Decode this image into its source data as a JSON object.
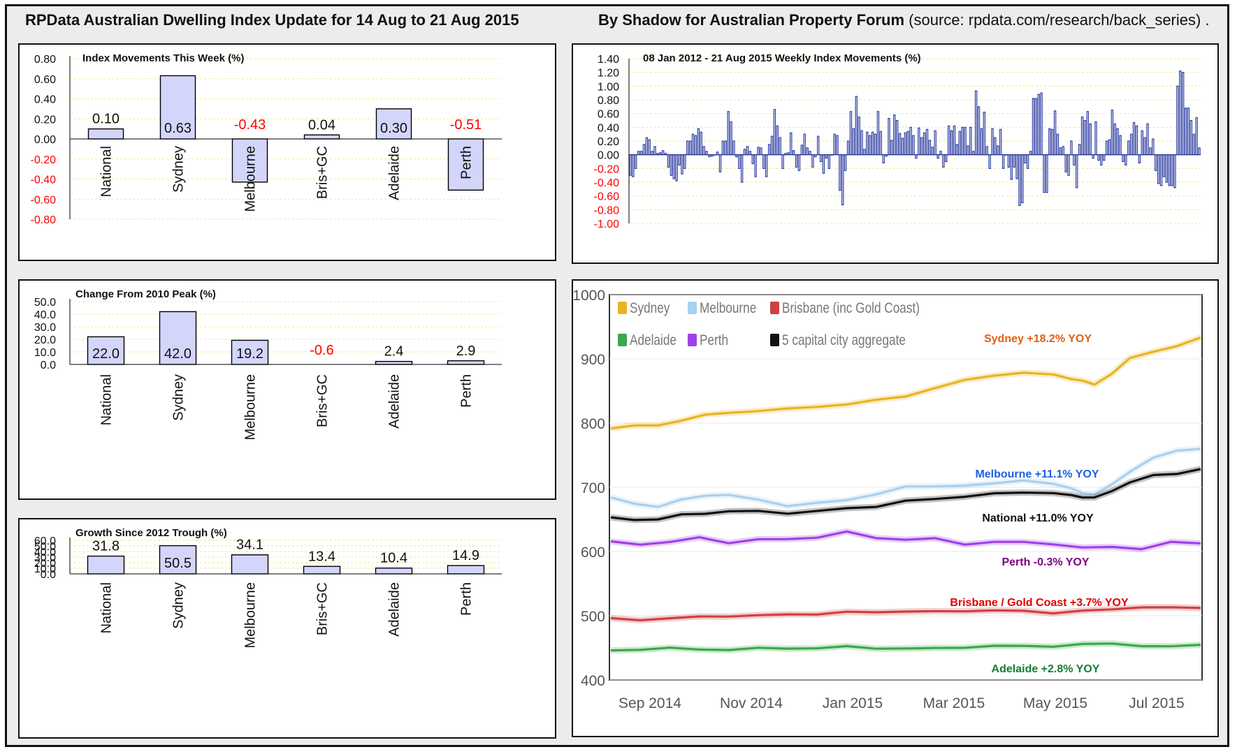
{
  "header": {
    "left_title": "RPData Australian Dwelling Index Update for 14 Aug to 21 Aug 2015",
    "right_title": "By Shadow for Australian Property Forum",
    "source": "(source: rpdata.com/research/back_series)",
    "trailing_dot": "."
  },
  "chart_data": [
    {
      "id": "index-movements",
      "type": "bar",
      "title": "Index Movements This Week (%)",
      "categories": [
        "National",
        "Sydney",
        "Melbourne",
        "Bris+GC",
        "Adelaide",
        "Perth"
      ],
      "values": [
        0.1,
        0.63,
        -0.43,
        0.04,
        0.3,
        -0.51
      ],
      "labels": [
        "0.10",
        "0.63",
        "-0.43",
        "0.04",
        "0.30",
        "-0.51"
      ],
      "ylim": [
        -0.8,
        0.8
      ],
      "yticks": [
        "0.80",
        "0.60",
        "0.40",
        "0.20",
        "0.00",
        "-0.20",
        "-0.40",
        "-0.60",
        "-0.80"
      ],
      "grid": true,
      "colors": {
        "bar": "#d3d5fb",
        "negative": "#ff0000"
      }
    },
    {
      "id": "weekly-movements",
      "type": "bar",
      "title": "08 Jan 2012 - 21 Aug 2015 Weekly Index Movements (%)",
      "values": [
        -0.3,
        -0.32,
        -0.2,
        0.05,
        0.05,
        0.15,
        0.25,
        0.22,
        0.05,
        0.12,
        0.02,
        0.03,
        0.06,
        0.02,
        -0.18,
        -0.3,
        -0.35,
        -0.38,
        -0.15,
        -0.28,
        -0.2,
        0.2,
        0.2,
        0.3,
        0.28,
        0.38,
        0.33,
        0.12,
        0.05,
        -0.03,
        -0.02,
        0.0,
        0.04,
        -0.25,
        0.2,
        0.2,
        0.63,
        0.48,
        0.2,
        -0.03,
        -0.2,
        -0.4,
        0.08,
        0.12,
        0.05,
        -0.13,
        -0.32,
        0.11,
        0.1,
        -0.2,
        -0.32,
        0.15,
        0.27,
        0.66,
        0.42,
        0.25,
        -0.2,
        0.02,
        0.03,
        0.32,
        0.06,
        -0.18,
        -0.23,
        0.14,
        0.3,
        0.1,
        0.05,
        -0.18,
        -0.03,
        0.27,
        -0.1,
        -0.27,
        -0.05,
        -0.2,
        0.0,
        0.3,
        0.28,
        -0.52,
        -0.73,
        -0.23,
        0.2,
        0.63,
        0.38,
        0.85,
        0.55,
        0.35,
        0.08,
        0.33,
        0.28,
        0.33,
        0.3,
        0.63,
        0.34,
        -0.12,
        -0.02,
        0.53,
        0.21,
        0.58,
        0.5,
        0.31,
        0.24,
        0.32,
        0.34,
        0.4,
        0.28,
        -0.05,
        0.39,
        0.25,
        0.32,
        0.37,
        0.21,
        0.11,
        0.35,
        -0.05,
        0.05,
        -0.18,
        -0.1,
        0.42,
        0.35,
        0.42,
        0.15,
        0.34,
        0.4,
        0.4,
        0.13,
        0.4,
        0.05,
        0.93,
        0.7,
        0.38,
        0.62,
        0.12,
        -0.2,
        0.38,
        0.25,
        0.13,
        0.37,
        -0.2,
        0.0,
        -0.18,
        -0.36,
        -0.18,
        -0.35,
        -0.74,
        -0.7,
        -0.12,
        -0.2,
        0.05,
        0.82,
        0.82,
        0.88,
        0.9,
        -0.55,
        -0.55,
        0.38,
        0.37,
        0.64,
        0.3,
        0.1,
        0.12,
        -0.25,
        -0.3,
        0.2,
        -0.15,
        -0.48,
        0.15,
        0.55,
        0.5,
        0.63,
        0.45,
        -0.05,
        0.48,
        -0.08,
        -0.15,
        -0.08,
        0.2,
        0.22,
        0.65,
        0.45,
        0.38,
        0.28,
        -0.1,
        -0.15,
        0.2,
        0.3,
        0.47,
        0.42,
        -0.12,
        0.35,
        0.25,
        0.45,
        0.1,
        0.23,
        -0.23,
        -0.42,
        -0.45,
        -0.32,
        -0.4,
        -0.45,
        -0.45,
        -0.48,
        1.0,
        1.22,
        1.2,
        0.68,
        0.68,
        0.5,
        0.3,
        0.54,
        0.1
      ],
      "ylim": [
        -1.0,
        1.4
      ],
      "yticks": [
        "1.40",
        "1.20",
        "1.00",
        "0.80",
        "0.60",
        "0.40",
        "0.20",
        "0.00",
        "-0.20",
        "-0.40",
        "-0.60",
        "-0.80",
        "-1.00"
      ],
      "grid": true,
      "colors": {
        "bar": "#1a2c9a",
        "negative_tick": "#ff0000"
      }
    },
    {
      "id": "change-from-peak",
      "type": "bar",
      "title": "Change From 2010 Peak (%)",
      "categories": [
        "National",
        "Sydney",
        "Melbourne",
        "Bris+GC",
        "Adelaide",
        "Perth"
      ],
      "values": [
        22.0,
        42.0,
        19.2,
        -0.6,
        2.4,
        2.9
      ],
      "labels": [
        "22.0",
        "42.0",
        "19.2",
        "-0.6",
        "2.4",
        "2.9"
      ],
      "ylim": [
        0,
        50
      ],
      "yticks": [
        "50.0",
        "40.0",
        "30.0",
        "20.0",
        "10.0",
        "0.0"
      ],
      "grid": true,
      "colors": {
        "bar": "#d3d5fb",
        "negative": "#ff0000"
      }
    },
    {
      "id": "growth-since-trough",
      "type": "bar",
      "title": "Growth Since 2012 Trough (%)",
      "categories": [
        "National",
        "Sydney",
        "Melbourne",
        "Bris+GC",
        "Adelaide",
        "Perth"
      ],
      "values": [
        31.8,
        50.5,
        34.1,
        13.4,
        10.4,
        14.9
      ],
      "labels": [
        "31.8",
        "50.5",
        "34.1",
        "13.4",
        "10.4",
        "14.9"
      ],
      "ylim": [
        0,
        60
      ],
      "yticks": [
        "60.0",
        "50.0",
        "40.0",
        "30.0",
        "20.0",
        "10.0",
        "0.0"
      ],
      "grid": true,
      "colors": {
        "bar": "#d3d5fb"
      }
    },
    {
      "id": "capital-city-index",
      "type": "line",
      "yticks": [
        "1000",
        "900",
        "800",
        "700",
        "600",
        "500",
        "400"
      ],
      "ylim": [
        400,
        1000
      ],
      "xticks": [
        "Sep 2014",
        "Nov 2014",
        "Jan 2015",
        "Mar 2015",
        "May 2015",
        "Jul 2015"
      ],
      "legend": [
        {
          "label": "Sydney",
          "color": "#e8b422"
        },
        {
          "label": "Melbourne",
          "color": "#a8d0f0"
        },
        {
          "label": "Brisbane (inc Gold Coast)",
          "color": "#d04040"
        },
        {
          "label": "Adelaide",
          "color": "#3aa84a"
        },
        {
          "label": "Perth",
          "color": "#a040e8"
        },
        {
          "label": "5 capital city aggregate",
          "color": "#111111"
        }
      ],
      "series": [
        {
          "name": "Sydney",
          "color": "#e8b422",
          "label_color": "#e06010",
          "label": "Sydney +18.2% YOY",
          "x": [
            0,
            0.04,
            0.08,
            0.12,
            0.16,
            0.2,
            0.25,
            0.3,
            0.35,
            0.4,
            0.45,
            0.5,
            0.55,
            0.6,
            0.65,
            0.7,
            0.75,
            0.78,
            0.8,
            0.82,
            0.85,
            0.88,
            0.92,
            0.96,
            1.0
          ],
          "values": [
            792,
            797,
            795,
            805,
            813,
            815,
            820,
            822,
            825,
            830,
            835,
            842,
            855,
            866,
            875,
            878,
            875,
            870,
            865,
            860,
            878,
            900,
            912,
            920,
            932
          ]
        },
        {
          "name": "Melbourne",
          "color": "#a8d0f0",
          "label_color": "#2060e0",
          "label": "Melbourne +11.1% YOY",
          "x": [
            0,
            0.04,
            0.08,
            0.12,
            0.16,
            0.2,
            0.25,
            0.3,
            0.35,
            0.4,
            0.45,
            0.5,
            0.55,
            0.6,
            0.65,
            0.7,
            0.75,
            0.78,
            0.8,
            0.82,
            0.85,
            0.88,
            0.92,
            0.96,
            1.0
          ],
          "values": [
            683,
            675,
            670,
            680,
            688,
            688,
            680,
            672,
            675,
            680,
            690,
            700,
            702,
            703,
            705,
            712,
            705,
            698,
            692,
            688,
            705,
            725,
            745,
            758,
            760
          ]
        },
        {
          "name": "National",
          "color": "#111111",
          "label_color": "#111111",
          "label": "National +11.0% YOY",
          "x": [
            0,
            0.04,
            0.08,
            0.12,
            0.16,
            0.2,
            0.25,
            0.3,
            0.35,
            0.4,
            0.45,
            0.5,
            0.55,
            0.6,
            0.65,
            0.7,
            0.75,
            0.78,
            0.8,
            0.82,
            0.85,
            0.88,
            0.92,
            0.96,
            1.0
          ],
          "values": [
            652,
            650,
            650,
            657,
            660,
            662,
            663,
            660,
            662,
            668,
            670,
            678,
            683,
            685,
            690,
            693,
            690,
            688,
            685,
            683,
            695,
            708,
            718,
            722,
            728
          ]
        },
        {
          "name": "Perth",
          "color": "#a040e8",
          "label_color": "#800080",
          "label": "Perth -0.3% YOY",
          "x": [
            0,
            0.05,
            0.1,
            0.15,
            0.2,
            0.25,
            0.3,
            0.35,
            0.4,
            0.45,
            0.5,
            0.55,
            0.6,
            0.65,
            0.7,
            0.75,
            0.8,
            0.85,
            0.9,
            0.95,
            1.0
          ],
          "values": [
            615,
            612,
            614,
            622,
            614,
            618,
            620,
            622,
            630,
            622,
            618,
            620,
            612,
            614,
            615,
            612,
            605,
            608,
            604,
            614,
            614
          ]
        },
        {
          "name": "Brisbane / Gold Coast",
          "color": "#d04040",
          "label_color": "#e00000",
          "label": "Brisbane / Gold Coast +3.7% YOY",
          "x": [
            0,
            0.05,
            0.1,
            0.15,
            0.2,
            0.25,
            0.3,
            0.35,
            0.4,
            0.45,
            0.5,
            0.55,
            0.6,
            0.65,
            0.7,
            0.75,
            0.8,
            0.85,
            0.9,
            0.95,
            1.0
          ],
          "values": [
            495,
            494,
            496,
            498,
            500,
            500,
            502,
            503,
            505,
            506,
            507,
            506,
            508,
            508,
            507,
            505,
            507,
            510,
            514,
            512,
            513
          ]
        },
        {
          "name": "Adelaide",
          "color": "#3aa84a",
          "label_color": "#108030",
          "label": "Adelaide +2.8% YOY",
          "x": [
            0,
            0.05,
            0.1,
            0.15,
            0.2,
            0.25,
            0.3,
            0.35,
            0.4,
            0.45,
            0.5,
            0.55,
            0.6,
            0.65,
            0.7,
            0.75,
            0.8,
            0.85,
            0.9,
            0.95,
            1.0
          ],
          "values": [
            446,
            448,
            449,
            448,
            447,
            449,
            450,
            449,
            452,
            450,
            448,
            450,
            451,
            452,
            454,
            452,
            455,
            458,
            452,
            452,
            456
          ]
        }
      ]
    }
  ]
}
